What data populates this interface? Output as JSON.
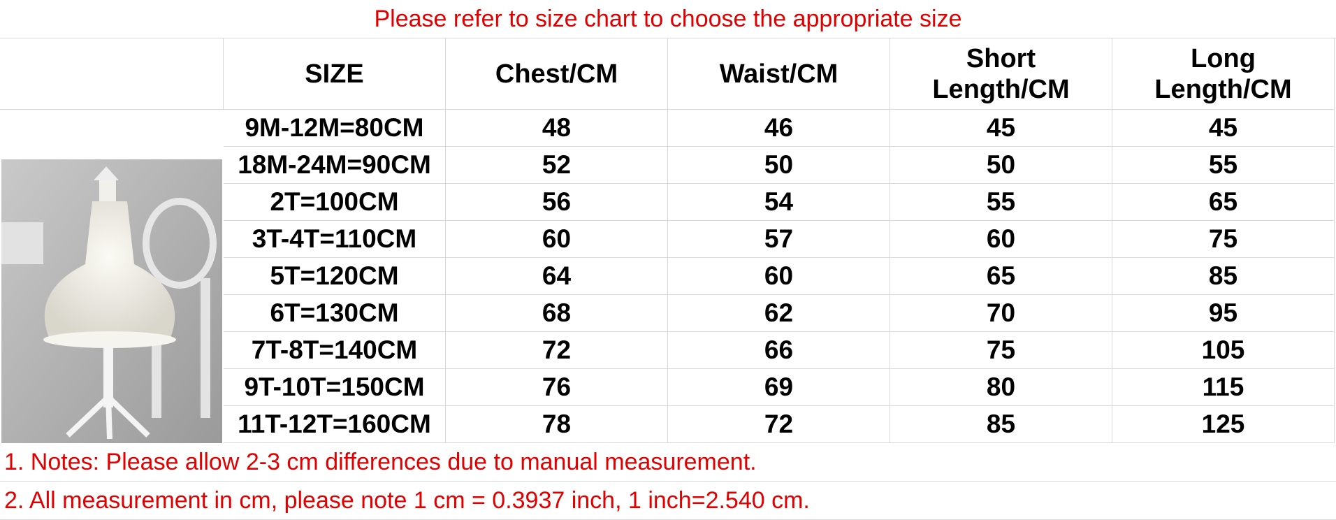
{
  "title": "Please refer to size chart to choose the appropriate size",
  "table": {
    "headers": [
      "SIZE",
      "Chest/CM",
      "Waist/CM",
      "Short Length/CM",
      "Long Length/CM"
    ],
    "rows": [
      [
        "9M-12M=80CM",
        48,
        46,
        45,
        45
      ],
      [
        "18M-24M=90CM",
        52,
        50,
        50,
        55
      ],
      [
        "2T=100CM",
        56,
        54,
        55,
        65
      ],
      [
        "3T-4T=110CM",
        60,
        57,
        60,
        75
      ],
      [
        "5T=120CM",
        64,
        60,
        65,
        85
      ],
      [
        "6T=130CM",
        68,
        62,
        70,
        95
      ],
      [
        "7T-8T=140CM",
        72,
        66,
        75,
        105
      ],
      [
        "9T-10T=150CM",
        76,
        69,
        80,
        115
      ],
      [
        "11T-12T=160CM",
        78,
        72,
        85,
        125
      ]
    ]
  },
  "notes": [
    "1. Notes: Please allow 2-3 cm differences due to manual measurement.",
    "2. All measurement in cm, please note 1 cm = 0.3937 inch, 1 inch=2.540 cm."
  ]
}
